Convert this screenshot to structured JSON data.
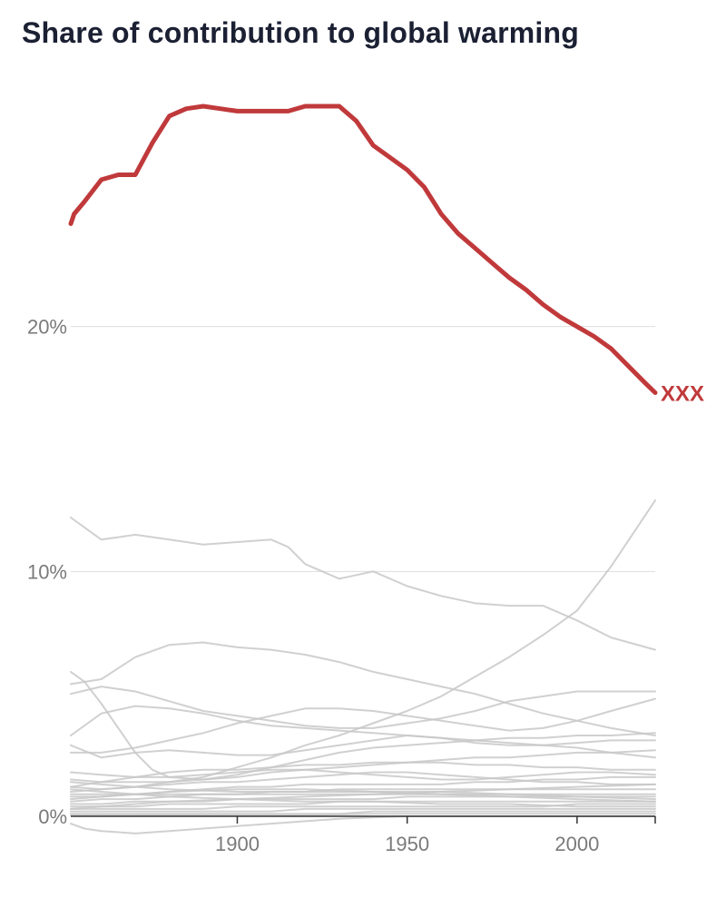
{
  "chart_data": {
    "type": "line",
    "title": "Share of contribution to global warming",
    "xlabel": "",
    "ylabel": "",
    "xlim": [
      1851,
      2023
    ],
    "ylim": [
      0,
      30
    ],
    "y_ticks": [
      0,
      10,
      20
    ],
    "y_tick_labels": [
      "0%",
      "10%",
      "20%"
    ],
    "x_ticks": [
      1900,
      1950,
      2000
    ],
    "x_tick_labels": [
      "1900",
      "1950",
      "2000"
    ],
    "grid": true,
    "highlight_color": "#c0393b",
    "background_color": "#c8c8c8",
    "highlighted": {
      "end_label": "XXX",
      "x": [
        1851,
        1852,
        1855,
        1860,
        1865,
        1870,
        1875,
        1880,
        1885,
        1890,
        1895,
        1900,
        1905,
        1910,
        1915,
        1920,
        1925,
        1930,
        1935,
        1940,
        1945,
        1950,
        1955,
        1960,
        1965,
        1970,
        1975,
        1980,
        1985,
        1990,
        1995,
        2000,
        2005,
        2010,
        2015,
        2020,
        2023
      ],
      "y": [
        24.2,
        24.6,
        25.1,
        26.0,
        26.2,
        26.2,
        27.5,
        28.6,
        28.9,
        29.0,
        28.9,
        28.8,
        28.8,
        28.8,
        28.8,
        29.0,
        29.0,
        29.0,
        28.4,
        27.4,
        26.9,
        26.4,
        25.7,
        24.6,
        23.8,
        23.2,
        22.6,
        22.0,
        21.5,
        20.9,
        20.4,
        20.0,
        19.6,
        19.1,
        18.4,
        17.7,
        17.3
      ]
    },
    "background_series": [
      {
        "x": [
          1851,
          1855,
          1860,
          1870,
          1880,
          1890,
          1900,
          1910,
          1915,
          1920,
          1930,
          1940,
          1950,
          1960,
          1970,
          1980,
          1990,
          2000,
          2010,
          2023
        ],
        "y": [
          12.2,
          11.8,
          11.3,
          11.5,
          11.3,
          11.1,
          11.2,
          11.3,
          11.0,
          10.3,
          9.7,
          10.0,
          9.4,
          9.0,
          8.7,
          8.6,
          8.6,
          8.0,
          7.3,
          6.8
        ]
      },
      {
        "x": [
          1851,
          1860,
          1870,
          1880,
          1890,
          1900,
          1910,
          1920,
          1930,
          1940,
          1950,
          1960,
          1970,
          1980,
          1990,
          2000,
          2010,
          2023
        ],
        "y": [
          1.2,
          1.1,
          1.2,
          1.4,
          1.6,
          2.0,
          2.4,
          2.9,
          3.3,
          3.8,
          4.3,
          4.9,
          5.7,
          6.5,
          7.4,
          8.4,
          10.2,
          12.9
        ]
      },
      {
        "x": [
          1851,
          1855,
          1860,
          1865,
          1870,
          1875,
          1880,
          1890,
          1900,
          1910,
          1920,
          1930,
          1940,
          1950,
          1960,
          1970,
          1980,
          1990,
          2000,
          2010,
          2023
        ],
        "y": [
          5.9,
          5.5,
          4.6,
          3.6,
          2.6,
          1.9,
          1.6,
          1.5,
          1.6,
          1.8,
          1.9,
          2.0,
          2.1,
          2.2,
          2.3,
          2.4,
          2.4,
          2.5,
          2.6,
          2.6,
          2.7
        ]
      },
      {
        "x": [
          1851,
          1860,
          1870,
          1880,
          1890,
          1900,
          1910,
          1920,
          1930,
          1940,
          1950,
          1960,
          1970,
          1980,
          1990,
          2000,
          2010,
          2023
        ],
        "y": [
          5.4,
          5.6,
          6.5,
          7.0,
          7.1,
          6.9,
          6.8,
          6.6,
          6.3,
          5.9,
          5.6,
          5.3,
          5.0,
          4.6,
          4.2,
          3.9,
          3.6,
          3.3
        ]
      },
      {
        "x": [
          1851,
          1860,
          1870,
          1880,
          1890,
          1900,
          1910,
          1920,
          1930,
          1940,
          1950,
          1960,
          1970,
          1980,
          1990,
          2000,
          2010,
          2023
        ],
        "y": [
          5.0,
          5.3,
          5.1,
          4.7,
          4.3,
          4.1,
          3.9,
          3.7,
          3.6,
          3.6,
          3.8,
          4.0,
          4.3,
          4.7,
          4.9,
          5.1,
          5.1,
          5.1
        ]
      },
      {
        "x": [
          1851,
          1860,
          1870,
          1880,
          1890,
          1900,
          1910,
          1920,
          1930,
          1940,
          1950,
          1960,
          1970,
          1980,
          1990,
          2000,
          2010,
          2023
        ],
        "y": [
          3.3,
          4.2,
          4.5,
          4.4,
          4.2,
          3.9,
          3.7,
          3.6,
          3.5,
          3.4,
          3.3,
          3.2,
          3.0,
          2.9,
          2.9,
          3.0,
          3.1,
          3.1
        ]
      },
      {
        "x": [
          1851,
          1860,
          1870,
          1880,
          1890,
          1900,
          1910,
          1920,
          1930,
          1940,
          1950,
          1960,
          1970,
          1980,
          1990,
          2000,
          2010,
          2023
        ],
        "y": [
          2.6,
          2.6,
          2.8,
          3.1,
          3.4,
          3.8,
          4.1,
          4.4,
          4.4,
          4.3,
          4.1,
          3.9,
          3.7,
          3.5,
          3.6,
          3.9,
          4.3,
          4.8
        ]
      },
      {
        "x": [
          1851,
          1860,
          1870,
          1880,
          1890,
          1900,
          1910,
          1920,
          1930,
          1940,
          1950,
          1960,
          1970,
          1980,
          1990,
          2000,
          2010,
          2023
        ],
        "y": [
          2.9,
          2.4,
          2.6,
          2.7,
          2.6,
          2.5,
          2.5,
          2.7,
          2.9,
          3.1,
          3.3,
          3.2,
          3.1,
          3.0,
          2.9,
          2.8,
          2.6,
          2.4
        ]
      },
      {
        "x": [
          1851,
          1860,
          1870,
          1880,
          1890,
          1900,
          1910,
          1920,
          1930,
          1940,
          1950,
          1960,
          1970,
          1980,
          1990,
          2000,
          2010,
          2023
        ],
        "y": [
          1.5,
          1.4,
          1.4,
          1.4,
          1.5,
          1.7,
          2.0,
          2.3,
          2.6,
          2.8,
          2.9,
          3.0,
          3.1,
          3.2,
          3.2,
          3.3,
          3.3,
          3.4
        ]
      },
      {
        "x": [
          1851,
          1860,
          1870,
          1880,
          1890,
          1900,
          1910,
          1920,
          1930,
          1940,
          1950,
          1960,
          1970,
          1980,
          1990,
          2000,
          2010,
          2023
        ],
        "y": [
          1.2,
          1.4,
          1.6,
          1.8,
          1.9,
          1.9,
          2.0,
          2.1,
          2.1,
          2.2,
          2.2,
          2.2,
          2.1,
          2.1,
          2.0,
          2.0,
          1.9,
          1.9
        ]
      },
      {
        "x": [
          1851,
          1860,
          1870,
          1880,
          1890,
          1900,
          1910,
          1920,
          1930,
          1940,
          1950,
          1960,
          1970,
          1980,
          1990,
          2000,
          2010,
          2023
        ],
        "y": [
          1.8,
          1.7,
          1.6,
          1.6,
          1.7,
          1.8,
          1.9,
          1.9,
          1.8,
          1.7,
          1.6,
          1.5,
          1.5,
          1.6,
          1.7,
          1.8,
          1.8,
          1.7
        ]
      },
      {
        "x": [
          1851,
          1860,
          1870,
          1880,
          1890,
          1900,
          1910,
          1920,
          1930,
          1940,
          1950,
          1960,
          1970,
          1980,
          1990,
          2000,
          2010,
          2023
        ],
        "y": [
          1.0,
          1.1,
          1.2,
          1.3,
          1.4,
          1.4,
          1.5,
          1.6,
          1.7,
          1.8,
          1.8,
          1.7,
          1.6,
          1.5,
          1.4,
          1.4,
          1.3,
          1.3
        ]
      },
      {
        "x": [
          1851,
          1860,
          1870,
          1880,
          1890,
          1900,
          1910,
          1920,
          1930,
          1940,
          1950,
          1960,
          1970,
          1980,
          1990,
          2000,
          2010,
          2023
        ],
        "y": [
          0.8,
          0.8,
          0.9,
          1.0,
          1.1,
          1.2,
          1.2,
          1.3,
          1.3,
          1.3,
          1.3,
          1.3,
          1.4,
          1.4,
          1.5,
          1.5,
          1.6,
          1.6
        ]
      },
      {
        "x": [
          1851,
          1860,
          1870,
          1880,
          1890,
          1900,
          1910,
          1920,
          1930,
          1940,
          1950,
          1960,
          1970,
          1980,
          1990,
          2000,
          2010,
          2023
        ],
        "y": [
          0.6,
          0.7,
          0.7,
          0.8,
          0.9,
          0.9,
          1.0,
          1.0,
          1.1,
          1.1,
          1.1,
          1.1,
          1.1,
          1.1,
          1.1,
          1.1,
          1.1,
          1.1
        ]
      },
      {
        "x": [
          1851,
          1860,
          1870,
          1880,
          1890,
          1900,
          1910,
          1920,
          1930,
          1940,
          1950,
          1960,
          1970,
          1980,
          1990,
          2000,
          2010,
          2023
        ],
        "y": [
          0.9,
          0.9,
          0.9,
          0.9,
          0.9,
          0.9,
          0.9,
          0.9,
          0.9,
          0.9,
          0.9,
          0.9,
          0.9,
          0.9,
          0.9,
          0.9,
          0.9,
          0.9
        ]
      },
      {
        "x": [
          1851,
          1860,
          1870,
          1880,
          1890,
          1900,
          1910,
          1920,
          1930,
          1940,
          1950,
          1960,
          1970,
          1980,
          1990,
          2000,
          2010,
          2023
        ],
        "y": [
          0.5,
          0.5,
          0.6,
          0.6,
          0.6,
          0.7,
          0.7,
          0.7,
          0.7,
          0.7,
          0.8,
          0.8,
          0.8,
          0.8,
          0.8,
          0.8,
          0.8,
          0.8
        ]
      },
      {
        "x": [
          1851,
          1860,
          1870,
          1880,
          1890,
          1900,
          1910,
          1920,
          1930,
          1940,
          1950,
          1960,
          1970,
          1980,
          1990,
          2000,
          2010,
          2023
        ],
        "y": [
          0.4,
          0.4,
          0.4,
          0.5,
          0.5,
          0.5,
          0.5,
          0.5,
          0.6,
          0.6,
          0.6,
          0.6,
          0.6,
          0.6,
          0.6,
          0.6,
          0.6,
          0.6
        ]
      },
      {
        "x": [
          1851,
          1860,
          1870,
          1880,
          1890,
          1900,
          1910,
          1920,
          1930,
          1940,
          1950,
          1960,
          1970,
          1980,
          1990,
          2000,
          2010,
          2023
        ],
        "y": [
          0.3,
          0.3,
          0.3,
          0.3,
          0.3,
          0.4,
          0.4,
          0.4,
          0.4,
          0.4,
          0.4,
          0.4,
          0.4,
          0.4,
          0.4,
          0.5,
          0.5,
          0.5
        ]
      },
      {
        "x": [
          1851,
          1860,
          1870,
          1880,
          1890,
          1900,
          1910,
          1920,
          1930,
          1940,
          1950,
          1960,
          1970,
          1980,
          1990,
          2000,
          2010,
          2023
        ],
        "y": [
          0.2,
          0.2,
          0.2,
          0.2,
          0.2,
          0.2,
          0.2,
          0.3,
          0.3,
          0.3,
          0.3,
          0.3,
          0.3,
          0.3,
          0.3,
          0.3,
          0.3,
          0.3
        ]
      },
      {
        "x": [
          1851,
          1860,
          1870,
          1880,
          1890,
          1900,
          1910,
          1920,
          1930,
          1940,
          1950,
          1960,
          1970,
          1980,
          1990,
          2000,
          2010,
          2023
        ],
        "y": [
          0.1,
          0.1,
          0.1,
          0.1,
          0.1,
          0.1,
          0.1,
          0.1,
          0.1,
          0.2,
          0.2,
          0.2,
          0.2,
          0.2,
          0.2,
          0.2,
          0.2,
          0.2
        ]
      },
      {
        "x": [
          1851,
          1860,
          1870,
          1880,
          1900,
          1920,
          1940,
          1960,
          1980,
          2000,
          2023
        ],
        "y": [
          1.4,
          1.3,
          1.2,
          1.1,
          1.0,
          1.0,
          1.0,
          1.0,
          0.9,
          0.8,
          0.7
        ]
      },
      {
        "x": [
          1851,
          1860,
          1870,
          1880,
          1900,
          1920,
          1940,
          1960,
          1980,
          2000,
          2023
        ],
        "y": [
          0.7,
          0.8,
          0.9,
          1.0,
          1.1,
          1.1,
          1.0,
          0.9,
          0.8,
          0.7,
          0.6
        ]
      },
      {
        "x": [
          1851,
          1860,
          1870,
          1880,
          1900,
          1920,
          1940,
          1960,
          1980,
          2000,
          2023
        ],
        "y": [
          1.1,
          1.0,
          0.9,
          0.8,
          0.7,
          0.6,
          0.6,
          0.5,
          0.5,
          0.4,
          0.4
        ]
      },
      {
        "x": [
          1851,
          1860,
          1870,
          1880,
          1900,
          1920,
          1940,
          1960,
          1980,
          2000,
          2023
        ],
        "y": [
          0.3,
          0.4,
          0.5,
          0.6,
          0.7,
          0.8,
          0.9,
          1.0,
          1.1,
          1.2,
          1.3
        ]
      },
      {
        "x": [
          1851,
          1860,
          1870,
          1880,
          1900,
          1920,
          1940,
          1960,
          1980,
          2000,
          2023
        ],
        "y": [
          0.05,
          0.05,
          0.05,
          0.05,
          0.05,
          0.05,
          0.1,
          0.1,
          0.1,
          0.1,
          0.1
        ]
      },
      {
        "x": [
          1851,
          1855,
          1860,
          1870,
          1880,
          1890,
          1900,
          1910,
          1920,
          1930,
          1940,
          1950,
          1960,
          1970,
          1980,
          1990,
          2000,
          2010,
          2023
        ],
        "y": [
          -0.3,
          -0.5,
          -0.6,
          -0.7,
          -0.6,
          -0.5,
          -0.4,
          -0.3,
          -0.2,
          -0.1,
          -0.05,
          0.0,
          0.0,
          0.0,
          0.0,
          0.0,
          0.0,
          0.0,
          0.0
        ]
      }
    ]
  }
}
